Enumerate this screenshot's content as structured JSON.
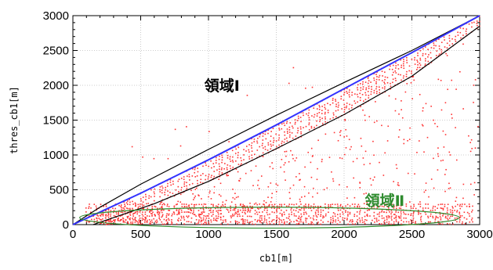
{
  "chart_data": {
    "type": "scatter",
    "xlabel": "cb1[m]",
    "ylabel": "thres_cb1[m]",
    "xlim": [
      0,
      3000
    ],
    "ylim": [
      0,
      3000
    ],
    "x_ticks": [
      "0",
      "500",
      "1000",
      "1500",
      "2000",
      "2500",
      "3000"
    ],
    "y_ticks": [
      "0",
      "500",
      "1000",
      "1500",
      "2000",
      "2500",
      "3000"
    ],
    "grid": true,
    "annotations": [
      {
        "text": "領域Ⅰ",
        "x": 1100,
        "y": 2000,
        "color": "#000000"
      },
      {
        "text": "領域Ⅱ",
        "x": 2300,
        "y": 350,
        "color": "#2e8b2e"
      }
    ],
    "curves": [
      {
        "color": "#000000",
        "points": [
          [
            0,
            0
          ],
          [
            200,
            250
          ],
          [
            500,
            580
          ],
          [
            1000,
            1080
          ],
          [
            1500,
            1570
          ],
          [
            2000,
            2040
          ],
          [
            2500,
            2500
          ],
          [
            3000,
            3000
          ]
        ]
      },
      {
        "color": "#3333ff",
        "points": [
          [
            0,
            0
          ],
          [
            500,
            450
          ],
          [
            1000,
            930
          ],
          [
            1500,
            1430
          ],
          [
            2000,
            1950
          ],
          [
            2500,
            2470
          ],
          [
            3000,
            3000
          ]
        ]
      },
      {
        "color": "#000000",
        "points": [
          [
            150,
            0
          ],
          [
            300,
            100
          ],
          [
            600,
            300
          ],
          [
            1000,
            620
          ],
          [
            1500,
            1090
          ],
          [
            2000,
            1580
          ],
          [
            2500,
            2130
          ],
          [
            3000,
            2850
          ]
        ]
      }
    ],
    "ellipse": {
      "cx": 1450,
      "cy": 100,
      "rx": 1400,
      "ry": 150,
      "color": "#2e8b2e"
    },
    "scatter": {
      "color": "#ff3333",
      "description_bands": [
        {
          "x_from": 0,
          "x_to": 3000,
          "y_lower_of": "lower_curve",
          "y_upper_of": "blue_curve",
          "density": "dense"
        },
        {
          "x_from": 100,
          "x_to": 3000,
          "y_from": 0,
          "y_to": 300,
          "density": "dense"
        }
      ]
    }
  }
}
